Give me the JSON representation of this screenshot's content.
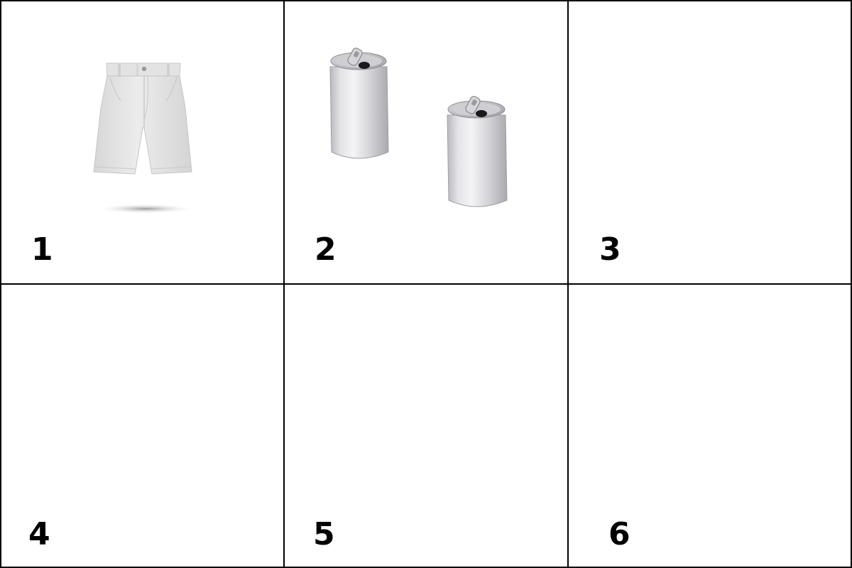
{
  "panels": [
    {
      "number": "1",
      "content": "shorts"
    },
    {
      "number": "2",
      "content": "cans"
    },
    {
      "number": "3",
      "content": "blank"
    },
    {
      "number": "4",
      "content": "blank"
    },
    {
      "number": "5",
      "content": "blank"
    },
    {
      "number": "6",
      "content": "blank"
    }
  ],
  "colors": {
    "background": "#ffffff",
    "grid_lines": "#000000",
    "numbers": "#000000",
    "aluminum": "#d8d8dc",
    "fabric": "#e6e6e6"
  }
}
